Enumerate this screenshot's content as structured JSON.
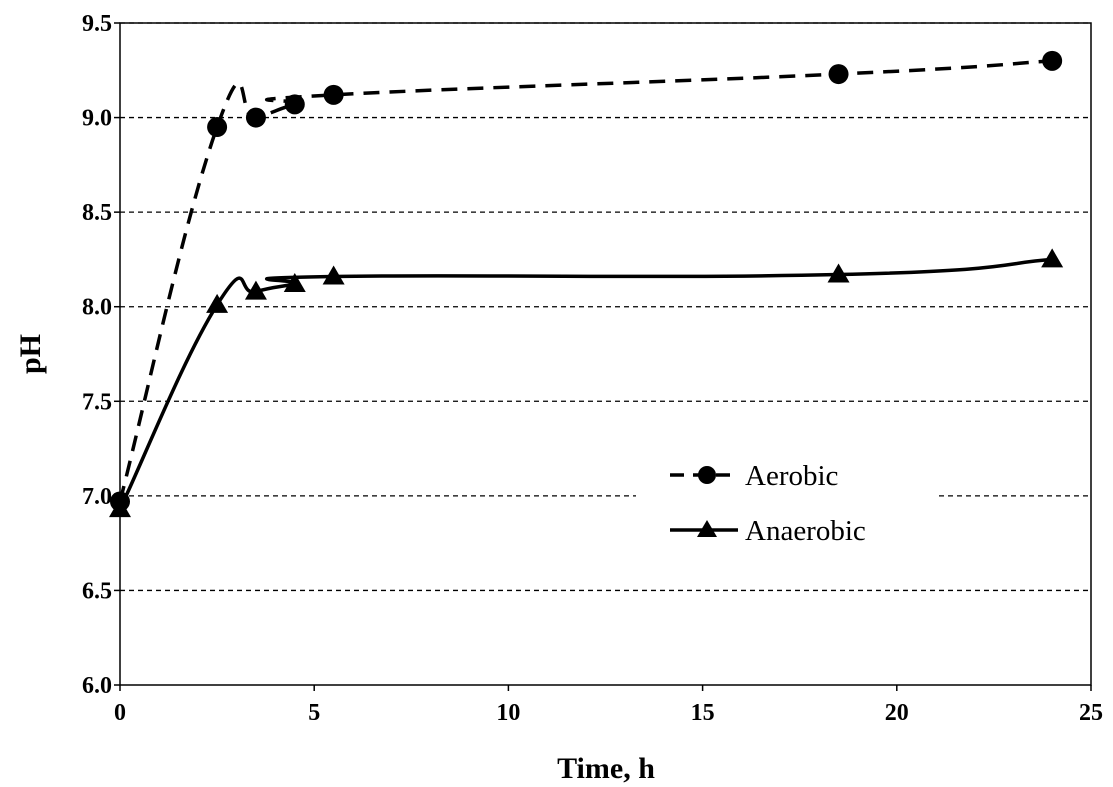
{
  "chart_data": {
    "type": "line",
    "title": "",
    "xlabel": "Time, h",
    "ylabel": "pH",
    "xlim": [
      0,
      25
    ],
    "ylim": [
      6.0,
      9.5
    ],
    "x_ticks": [
      "0",
      "5",
      "10",
      "15",
      "20",
      "25"
    ],
    "y_ticks": [
      "6.0",
      "6.5",
      "7.0",
      "7.5",
      "8.0",
      "8.5",
      "9.0",
      "9.5"
    ],
    "grid": "horizontal dashed",
    "legend_position": "center-right",
    "series": [
      {
        "name": "Aerobic",
        "line_style": "dashed",
        "marker": "circle",
        "color": "#000000",
        "x": [
          0,
          2.5,
          3.5,
          4.5,
          5.5,
          18.5,
          24
        ],
        "y": [
          6.97,
          8.95,
          9.0,
          9.07,
          9.12,
          9.23,
          9.3
        ]
      },
      {
        "name": "Anaerobic",
        "line_style": "solid",
        "marker": "triangle",
        "color": "#000000",
        "x": [
          0,
          2.5,
          3.5,
          4.5,
          5.5,
          18.5,
          24
        ],
        "y": [
          6.93,
          8.01,
          8.08,
          8.12,
          8.16,
          8.17,
          8.25
        ]
      }
    ]
  }
}
